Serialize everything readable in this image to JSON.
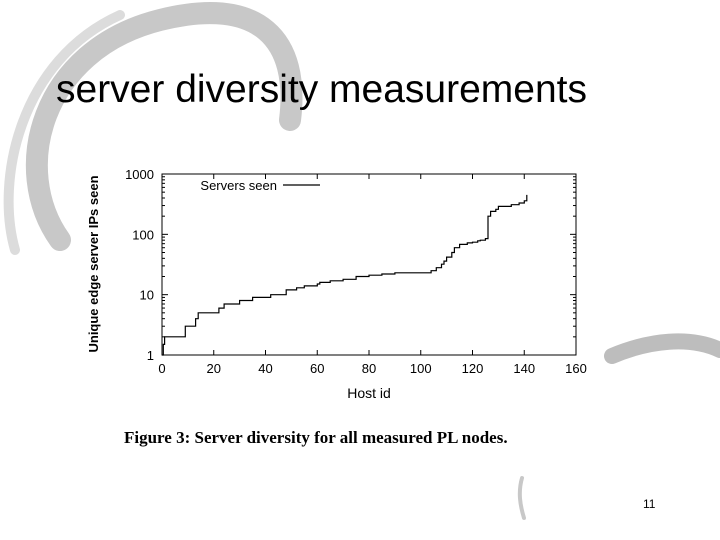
{
  "slide": {
    "title": "server diversity measurements",
    "caption": "Figure 3: Server diversity for all measured PL nodes.",
    "page_number": "11"
  },
  "colors": {
    "background": "#ffffff",
    "swirl": "#c0c0c0",
    "line": "#000000"
  },
  "chart_data": {
    "type": "line",
    "title": "",
    "xlabel": "Host id",
    "ylabel": "Unique edge server IPs seen",
    "xlim": [
      0,
      160
    ],
    "ylim": [
      1,
      1000
    ],
    "yscale": "log",
    "grid": false,
    "legend_position": "top-left",
    "x_ticks": [
      "0",
      "20",
      "40",
      "60",
      "80",
      "100",
      "120",
      "140",
      "160"
    ],
    "y_ticks": [
      "1",
      "10",
      "100",
      "1000"
    ],
    "series": [
      {
        "name": "Servers seen",
        "x": [
          0,
          0.5,
          1,
          8,
          9,
          11,
          13,
          14,
          20,
          22,
          24,
          27,
          30,
          32,
          35,
          37,
          38,
          42,
          43,
          48,
          50,
          52,
          55,
          60,
          61,
          65,
          68,
          70,
          75,
          80,
          85,
          90,
          95,
          100,
          104,
          106,
          108,
          109,
          110,
          112,
          113,
          115,
          118,
          120,
          122,
          123,
          125,
          126,
          127,
          129,
          130,
          135,
          138,
          140,
          141
        ],
        "y": [
          1,
          1.5,
          2,
          2,
          3,
          3,
          4,
          5,
          5,
          6,
          7,
          7,
          8,
          8,
          9,
          9,
          9,
          10,
          10,
          12,
          12,
          13,
          14,
          15,
          16,
          17,
          17,
          18,
          20,
          21,
          22,
          23,
          23,
          23,
          25,
          28,
          32,
          36,
          42,
          50,
          60,
          68,
          72,
          74,
          78,
          80,
          85,
          200,
          240,
          260,
          290,
          310,
          330,
          360,
          450
        ]
      }
    ]
  }
}
